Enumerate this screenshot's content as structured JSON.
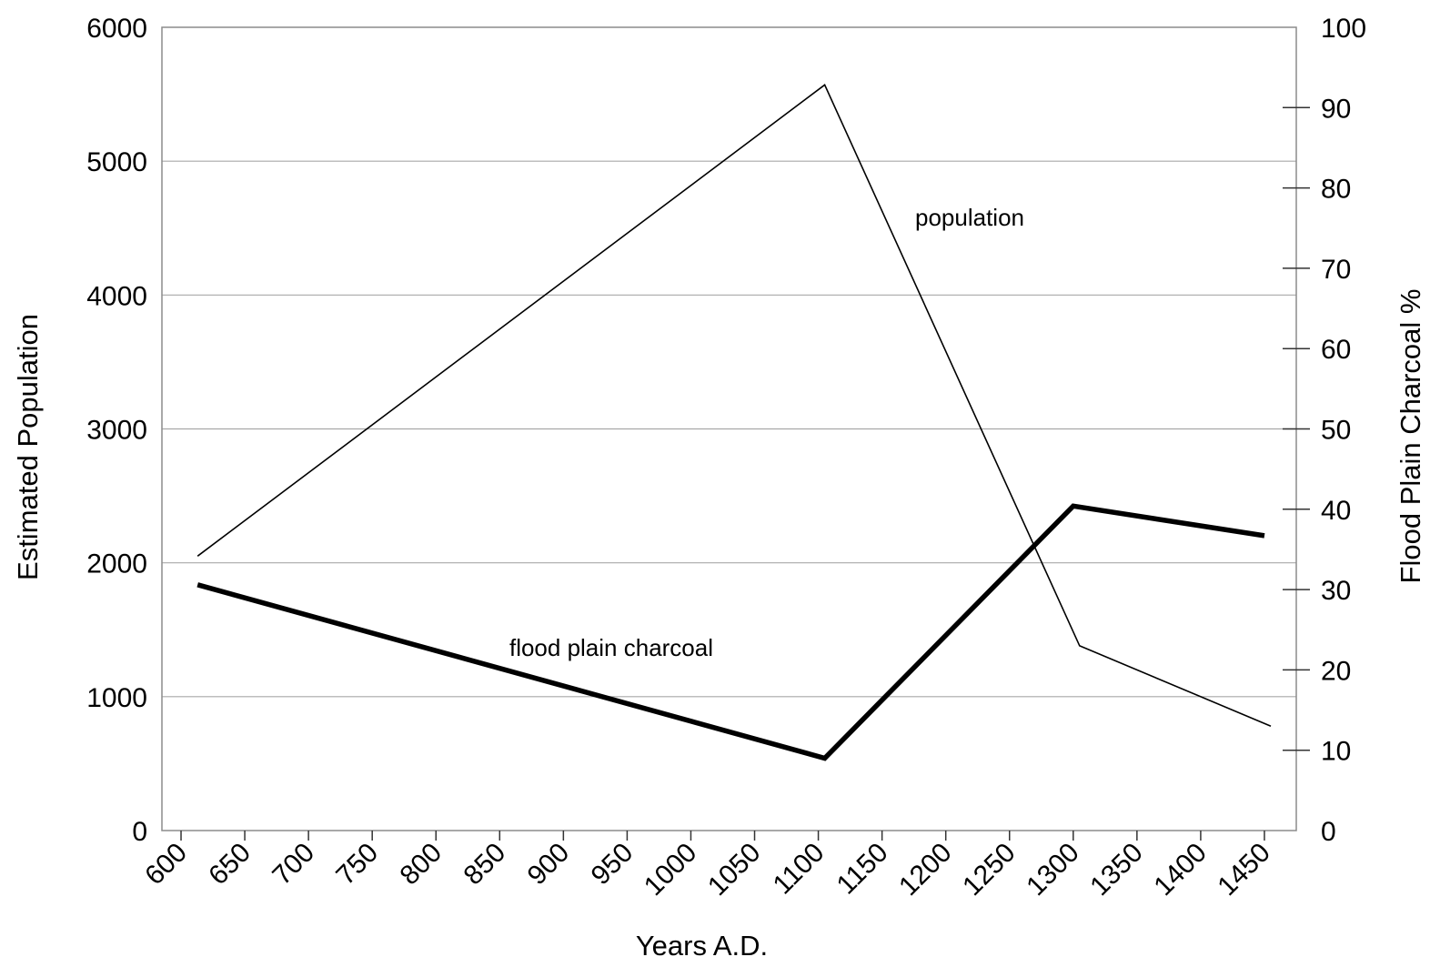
{
  "chart_data": {
    "type": "line",
    "xlabel": "Years A.D.",
    "ylabel": "Estimated Population",
    "y2label": "Flood Plain Charcoal %",
    "x_ticks": [
      600,
      650,
      700,
      750,
      800,
      850,
      900,
      950,
      1000,
      1050,
      1100,
      1150,
      1200,
      1250,
      1300,
      1350,
      1400,
      1450
    ],
    "xlim": [
      585,
      1475
    ],
    "ylim": [
      0,
      6000
    ],
    "y_ticks": [
      0,
      1000,
      2000,
      3000,
      4000,
      5000,
      6000
    ],
    "y2lim": [
      0,
      100
    ],
    "y2_ticks": [
      0,
      10,
      20,
      30,
      40,
      50,
      60,
      70,
      80,
      90,
      100
    ],
    "grid": "horizontal",
    "series": [
      {
        "name": "population",
        "axis": "left",
        "color": "#000000",
        "style": "thin",
        "x": [
          613,
          1105,
          1305,
          1455
        ],
        "y": [
          2050,
          5570,
          1380,
          780
        ]
      },
      {
        "name": "flood plain charcoal",
        "axis": "right",
        "color": "#000000",
        "style": "thick",
        "x": [
          613,
          1105,
          1300,
          1450
        ],
        "y": [
          30.6,
          9.0,
          40.4,
          36.7
        ]
      }
    ]
  }
}
